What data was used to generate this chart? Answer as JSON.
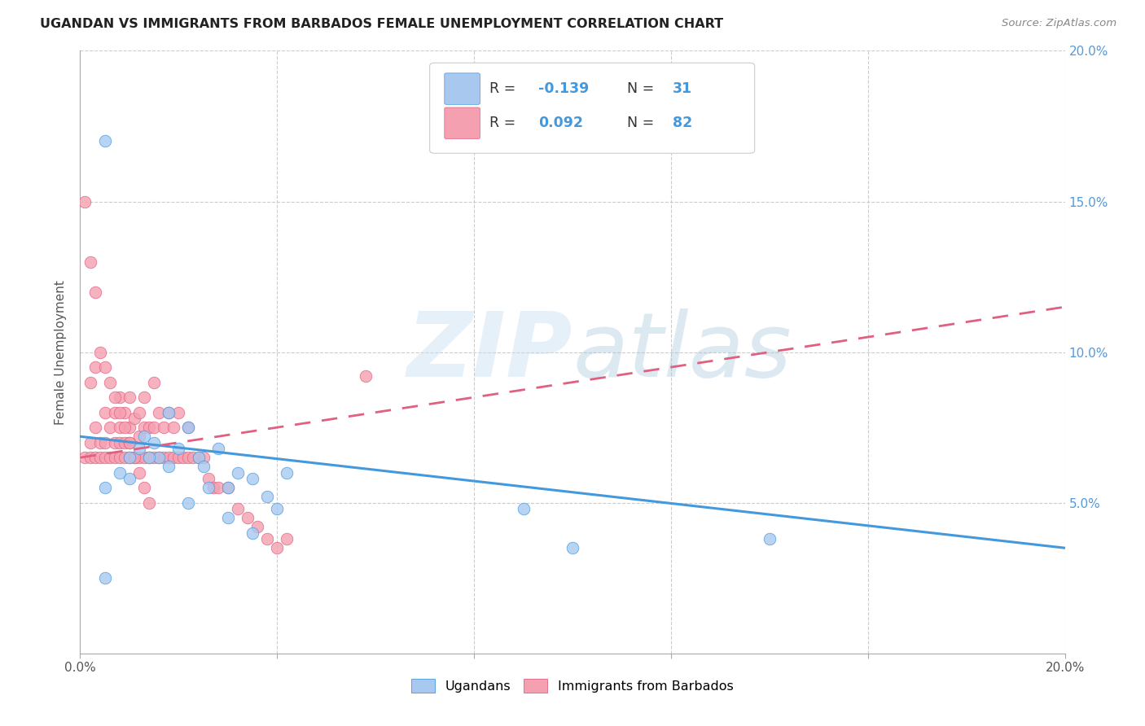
{
  "title": "UGANDAN VS IMMIGRANTS FROM BARBADOS FEMALE UNEMPLOYMENT CORRELATION CHART",
  "source": "Source: ZipAtlas.com",
  "ylabel": "Female Unemployment",
  "xlim": [
    0.0,
    0.2
  ],
  "ylim": [
    0.0,
    0.2
  ],
  "legend_labels": [
    "Ugandans",
    "Immigrants from Barbados"
  ],
  "blue_R": -0.139,
  "blue_N": 31,
  "pink_R": 0.092,
  "pink_N": 82,
  "blue_color": "#a8c8f0",
  "pink_color": "#f4a0b0",
  "blue_line_color": "#4499dd",
  "pink_line_color": "#e06080",
  "background_color": "#ffffff",
  "blue_trend_y0": 0.072,
  "blue_trend_y1": 0.035,
  "pink_trend_y0": 0.065,
  "pink_trend_y1": 0.115,
  "blue_scatter_x": [
    0.005,
    0.01,
    0.012,
    0.013,
    0.015,
    0.016,
    0.018,
    0.02,
    0.022,
    0.024,
    0.025,
    0.028,
    0.03,
    0.032,
    0.035,
    0.038,
    0.04,
    0.042,
    0.005,
    0.008,
    0.01,
    0.014,
    0.018,
    0.022,
    0.026,
    0.03,
    0.035,
    0.09,
    0.1,
    0.14,
    0.005
  ],
  "blue_scatter_y": [
    0.17,
    0.065,
    0.068,
    0.072,
    0.07,
    0.065,
    0.08,
    0.068,
    0.075,
    0.065,
    0.062,
    0.068,
    0.055,
    0.06,
    0.058,
    0.052,
    0.048,
    0.06,
    0.055,
    0.06,
    0.058,
    0.065,
    0.062,
    0.05,
    0.055,
    0.045,
    0.04,
    0.048,
    0.035,
    0.038,
    0.025
  ],
  "pink_scatter_x": [
    0.001,
    0.002,
    0.002,
    0.003,
    0.003,
    0.004,
    0.004,
    0.005,
    0.005,
    0.005,
    0.006,
    0.006,
    0.007,
    0.007,
    0.007,
    0.008,
    0.008,
    0.008,
    0.008,
    0.009,
    0.009,
    0.009,
    0.01,
    0.01,
    0.01,
    0.01,
    0.011,
    0.011,
    0.012,
    0.012,
    0.012,
    0.013,
    0.013,
    0.013,
    0.014,
    0.014,
    0.015,
    0.015,
    0.015,
    0.016,
    0.016,
    0.017,
    0.017,
    0.018,
    0.018,
    0.019,
    0.019,
    0.02,
    0.02,
    0.021,
    0.022,
    0.022,
    0.023,
    0.024,
    0.025,
    0.026,
    0.027,
    0.028,
    0.03,
    0.032,
    0.034,
    0.036,
    0.038,
    0.04,
    0.042,
    0.002,
    0.003,
    0.004,
    0.005,
    0.006,
    0.007,
    0.008,
    0.009,
    0.01,
    0.011,
    0.012,
    0.013,
    0.014,
    0.058,
    0.001,
    0.002,
    0.003
  ],
  "pink_scatter_y": [
    0.065,
    0.065,
    0.07,
    0.065,
    0.075,
    0.065,
    0.07,
    0.065,
    0.07,
    0.08,
    0.065,
    0.075,
    0.065,
    0.07,
    0.08,
    0.065,
    0.07,
    0.075,
    0.085,
    0.065,
    0.07,
    0.08,
    0.065,
    0.07,
    0.075,
    0.085,
    0.065,
    0.078,
    0.065,
    0.072,
    0.08,
    0.065,
    0.075,
    0.085,
    0.065,
    0.075,
    0.065,
    0.075,
    0.09,
    0.065,
    0.08,
    0.065,
    0.075,
    0.065,
    0.08,
    0.065,
    0.075,
    0.065,
    0.08,
    0.065,
    0.065,
    0.075,
    0.065,
    0.065,
    0.065,
    0.058,
    0.055,
    0.055,
    0.055,
    0.048,
    0.045,
    0.042,
    0.038,
    0.035,
    0.038,
    0.09,
    0.095,
    0.1,
    0.095,
    0.09,
    0.085,
    0.08,
    0.075,
    0.07,
    0.065,
    0.06,
    0.055,
    0.05,
    0.092,
    0.15,
    0.13,
    0.12
  ]
}
